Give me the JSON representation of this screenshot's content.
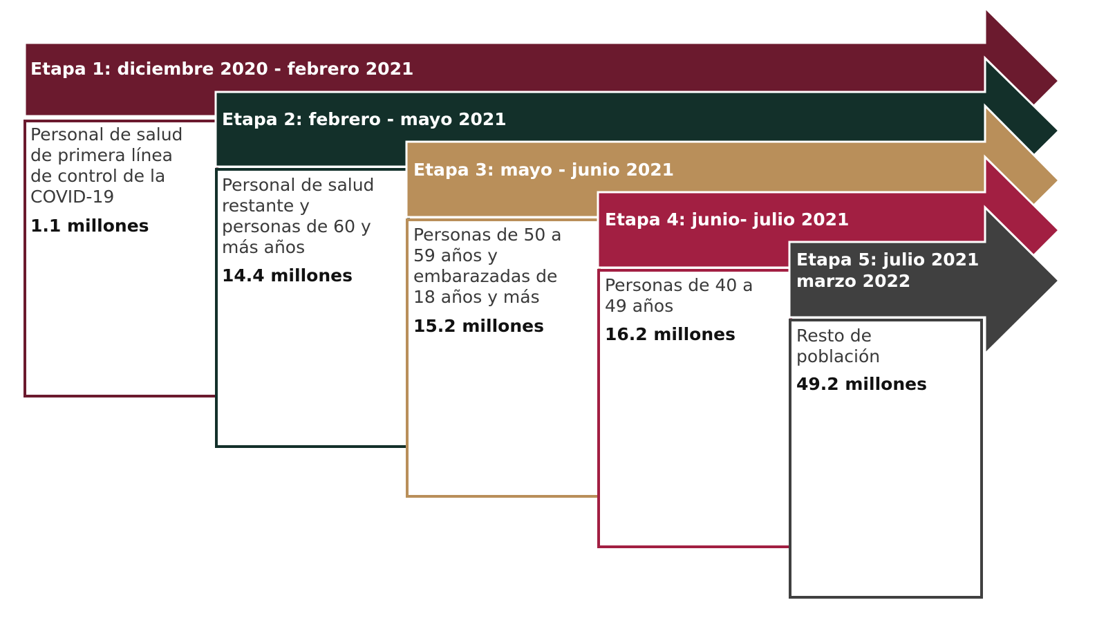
{
  "colors": {
    "stage1": "#6b1a2e",
    "stage2": "#13302a",
    "stage3": "#b98f5a",
    "stage4": "#a21f42",
    "stage5": "#404040"
  },
  "stages": [
    {
      "title": "Etapa 1: diciembre 2020 - febrero 2021",
      "description": "Personal de salud\nde primera línea\nde control de la\nCOVID-19",
      "count": "1.1 millones"
    },
    {
      "title": "Etapa 2: febrero - mayo 2021",
      "description": "Personal de salud\nrestante y\npersonas de 60 y\nmás años",
      "count": "14.4 millones"
    },
    {
      "title": "Etapa 3: mayo - junio 2021",
      "description": "Personas de 50 a\n59 años y\nembarazadas de\n18 años y más",
      "count": "15.2 millones"
    },
    {
      "title": "Etapa 4: junio- julio 2021",
      "description": "Personas de 40 a\n49 años",
      "count": "16.2 millones"
    },
    {
      "title": "Etapa 5: julio 2021\nmarzo 2022",
      "description": "Resto de\npoblación",
      "count": "49.2 millones"
    }
  ]
}
